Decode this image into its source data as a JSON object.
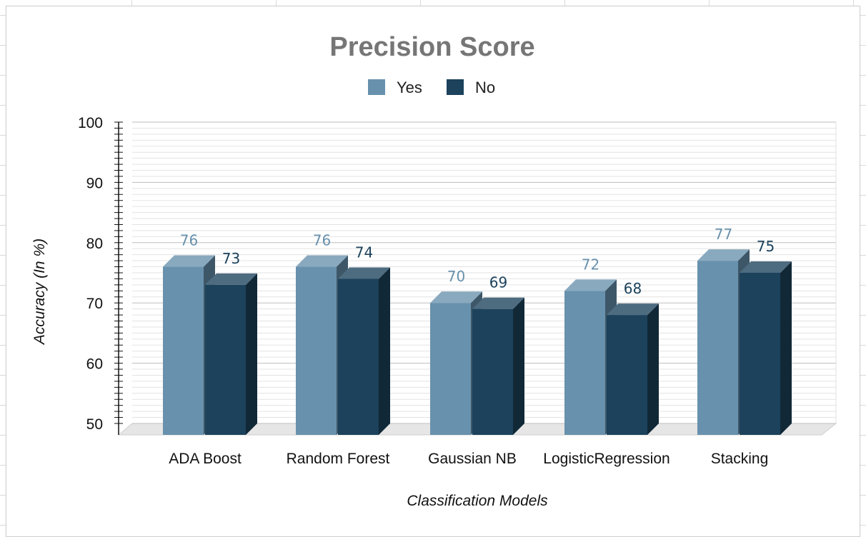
{
  "chart_data": {
    "type": "bar",
    "title": "Precision Score",
    "xlabel": "Classification Models",
    "ylabel": "Accuracy (In %)",
    "categories": [
      "ADA Boost",
      "Random Forest",
      "Gaussian NB",
      "LogisticRegression",
      "Stacking"
    ],
    "series": [
      {
        "name": "Yes",
        "values": [
          76,
          76,
          70,
          72,
          77
        ],
        "color": "#6891ad"
      },
      {
        "name": "No",
        "values": [
          73,
          74,
          69,
          68,
          75
        ],
        "color": "#1c425c"
      }
    ],
    "ylim": [
      50,
      100
    ],
    "yticks": [
      "50",
      "60",
      "70",
      "80",
      "90",
      "100"
    ],
    "grid": true,
    "legend_position": "top-center",
    "bar_style": "3d"
  }
}
